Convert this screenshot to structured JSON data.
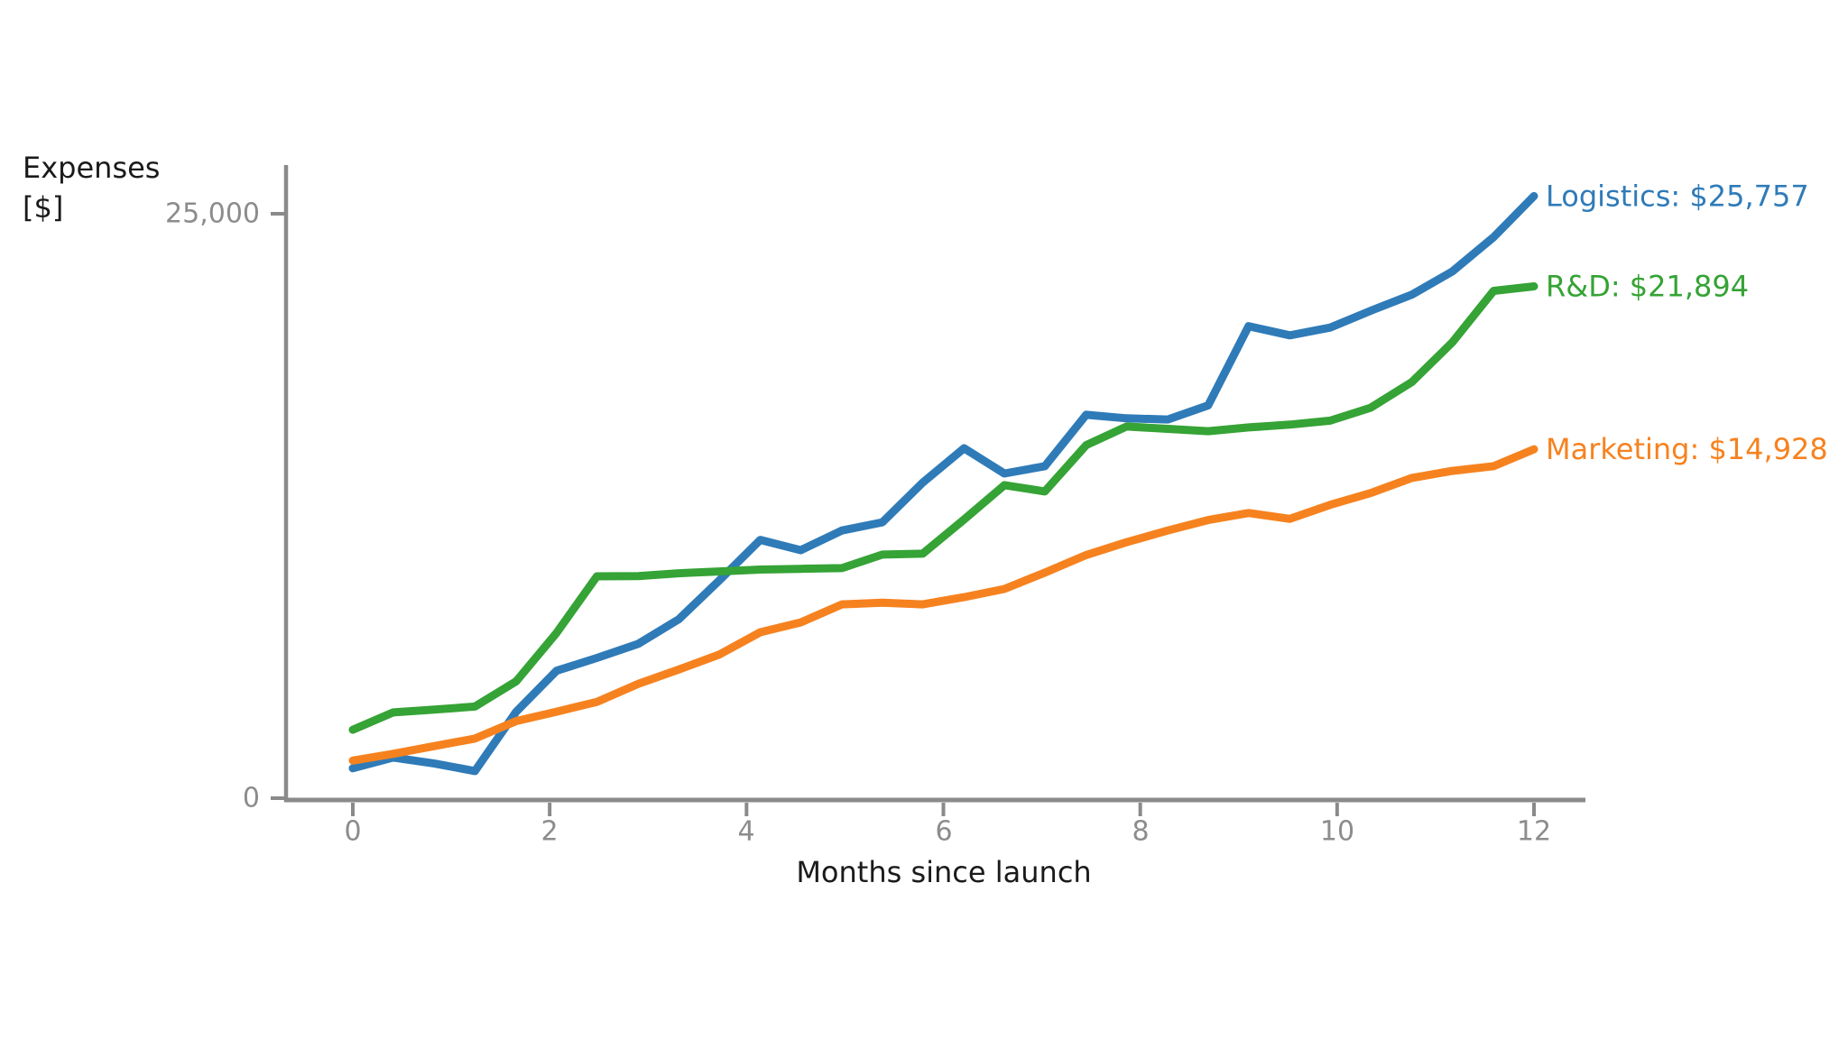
{
  "chart": {
    "y_axis_title": {
      "line1": "Expenses",
      "line2": "[$]"
    },
    "x_axis_title": "Months since launch",
    "y_tick_labels": [
      "25,000",
      "0"
    ],
    "x_tick_labels": [
      "0",
      "2",
      "4",
      "6",
      "8",
      "10",
      "12"
    ],
    "axis_color": "#8a8a8a",
    "tick_text_color": "#8c8c8c",
    "title_text_color": "#1a1a1a",
    "background_color": "#ffffff"
  },
  "chart_data": {
    "type": "line",
    "title": "",
    "xlabel": "Months since launch",
    "ylabel": "Expenses [$]",
    "xlim": [
      -0.7,
      12.5
    ],
    "ylim": [
      0,
      27000
    ],
    "x_ticks": [
      0,
      2,
      4,
      6,
      8,
      10,
      12
    ],
    "y_ticks": [
      0,
      25000
    ],
    "grid": false,
    "legend_position": "right-end-labels",
    "x": [
      0,
      0.41,
      0.83,
      1.24,
      1.66,
      2.07,
      2.48,
      2.9,
      3.31,
      3.72,
      4.14,
      4.55,
      4.97,
      5.38,
      5.79,
      6.21,
      6.62,
      7.03,
      7.45,
      7.86,
      8.28,
      8.69,
      9.1,
      9.52,
      9.93,
      10.34,
      10.76,
      11.17,
      11.59,
      12
    ],
    "series": [
      {
        "name": "Logistics",
        "color": "#2f7bb8",
        "final_value": 25757,
        "end_label": "Logistics: $25,757",
        "values": [
          1280,
          1740,
          1480,
          1160,
          3700,
          5450,
          6000,
          6600,
          7650,
          9300,
          11050,
          10610,
          11450,
          11800,
          13500,
          14970,
          13890,
          14200,
          16400,
          16250,
          16200,
          16800,
          20190,
          19800,
          20130,
          20850,
          21540,
          22530,
          24000,
          25757
        ]
      },
      {
        "name": "R&D",
        "color": "#35a335",
        "final_value": 21894,
        "end_label": "R&D: $21,894",
        "values": [
          2930,
          3670,
          3790,
          3920,
          5000,
          7070,
          9490,
          9500,
          9620,
          9700,
          9780,
          9810,
          9840,
          10420,
          10460,
          11920,
          13390,
          13120,
          15100,
          15900,
          15800,
          15700,
          15860,
          15980,
          16150,
          16700,
          17800,
          19500,
          21700,
          21894
        ]
      },
      {
        "name": "Marketing",
        "color": "#f6821f",
        "final_value": 14928,
        "end_label": "Marketing: $14,928",
        "values": [
          1610,
          1900,
          2230,
          2550,
          3300,
          3700,
          4120,
          4890,
          5500,
          6140,
          7100,
          7520,
          8290,
          8360,
          8290,
          8600,
          8950,
          9650,
          10400,
          10950,
          11450,
          11900,
          12200,
          11950,
          12550,
          13050,
          13700,
          14000,
          14200,
          14928
        ]
      }
    ]
  }
}
